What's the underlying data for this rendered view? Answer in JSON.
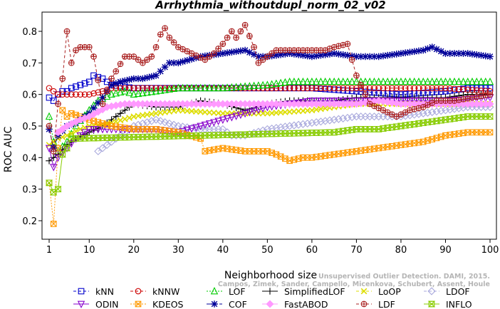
{
  "chart_data": {
    "type": "line",
    "title": "Arrhythmia_withoutdupl_norm_02_v02",
    "xlabel": "Neighborhood size",
    "ylabel": "ROC AUC",
    "xlim": [
      1,
      100
    ],
    "ylim": [
      0.15,
      0.85
    ],
    "xticks": [
      1,
      10,
      20,
      30,
      40,
      50,
      60,
      70,
      80,
      90,
      100
    ],
    "yticks": [
      0.2,
      0.3,
      0.4,
      0.5,
      0.6,
      0.7,
      0.8
    ],
    "grid": false,
    "legend_position": "bottom",
    "series": [
      {
        "name": "kNN",
        "color": "#0000cc",
        "marker": "square",
        "dash": "4,3",
        "points": [
          [
            1,
            0.59
          ],
          [
            2,
            0.58
          ],
          [
            3,
            0.6
          ],
          [
            4,
            0.61
          ],
          [
            5,
            0.61
          ],
          [
            6,
            0.62
          ],
          [
            8,
            0.63
          ],
          [
            10,
            0.64
          ],
          [
            11,
            0.66
          ],
          [
            13,
            0.65
          ],
          [
            15,
            0.63
          ],
          [
            20,
            0.62
          ],
          [
            30,
            0.62
          ],
          [
            40,
            0.62
          ],
          [
            50,
            0.62
          ],
          [
            60,
            0.62
          ],
          [
            70,
            0.61
          ],
          [
            80,
            0.6
          ],
          [
            90,
            0.61
          ],
          [
            95,
            0.62
          ],
          [
            100,
            0.62
          ]
        ]
      },
      {
        "name": "kNNW",
        "color": "#cc0000",
        "marker": "circle",
        "dash": "4,3",
        "points": [
          [
            1,
            0.62
          ],
          [
            2,
            0.61
          ],
          [
            3,
            0.6
          ],
          [
            5,
            0.6
          ],
          [
            7,
            0.6
          ],
          [
            10,
            0.6
          ],
          [
            13,
            0.61
          ],
          [
            15,
            0.62
          ],
          [
            20,
            0.62
          ],
          [
            30,
            0.62
          ],
          [
            40,
            0.62
          ],
          [
            50,
            0.62
          ],
          [
            60,
            0.62
          ],
          [
            70,
            0.62
          ],
          [
            80,
            0.62
          ],
          [
            90,
            0.62
          ],
          [
            100,
            0.61
          ]
        ]
      },
      {
        "name": "LOF",
        "color": "#00cc00",
        "marker": "triangle",
        "dash": "2,2",
        "points": [
          [
            1,
            0.53
          ],
          [
            2,
            0.45
          ],
          [
            3,
            0.42
          ],
          [
            5,
            0.45
          ],
          [
            7,
            0.5
          ],
          [
            10,
            0.55
          ],
          [
            12,
            0.58
          ],
          [
            15,
            0.6
          ],
          [
            18,
            0.61
          ],
          [
            20,
            0.6
          ],
          [
            25,
            0.61
          ],
          [
            30,
            0.62
          ],
          [
            40,
            0.62
          ],
          [
            50,
            0.63
          ],
          [
            55,
            0.64
          ],
          [
            60,
            0.64
          ],
          [
            70,
            0.64
          ],
          [
            80,
            0.64
          ],
          [
            90,
            0.64
          ],
          [
            100,
            0.64
          ]
        ]
      },
      {
        "name": "SimplifiedLOF",
        "color": "#000000",
        "marker": "plus",
        "dash": "",
        "points": [
          [
            1,
            0.39
          ],
          [
            2,
            0.4
          ],
          [
            3,
            0.41
          ],
          [
            5,
            0.44
          ],
          [
            7,
            0.46
          ],
          [
            10,
            0.48
          ],
          [
            13,
            0.5
          ],
          [
            15,
            0.52
          ],
          [
            18,
            0.55
          ],
          [
            20,
            0.57
          ],
          [
            25,
            0.56
          ],
          [
            30,
            0.56
          ],
          [
            35,
            0.58
          ],
          [
            40,
            0.57
          ],
          [
            45,
            0.55
          ],
          [
            50,
            0.57
          ],
          [
            55,
            0.58
          ],
          [
            60,
            0.58
          ],
          [
            65,
            0.58
          ],
          [
            70,
            0.59
          ],
          [
            75,
            0.59
          ],
          [
            80,
            0.59
          ],
          [
            85,
            0.59
          ],
          [
            90,
            0.59
          ],
          [
            95,
            0.6
          ],
          [
            100,
            0.6
          ]
        ]
      },
      {
        "name": "LoOP",
        "color": "#dddd00",
        "marker": "x",
        "dash": "4,3",
        "points": [
          [
            1,
            0.44
          ],
          [
            3,
            0.46
          ],
          [
            5,
            0.47
          ],
          [
            8,
            0.49
          ],
          [
            10,
            0.5
          ],
          [
            15,
            0.51
          ],
          [
            20,
            0.53
          ],
          [
            25,
            0.54
          ],
          [
            30,
            0.55
          ],
          [
            40,
            0.54
          ],
          [
            50,
            0.54
          ],
          [
            60,
            0.55
          ],
          [
            65,
            0.56
          ],
          [
            70,
            0.57
          ],
          [
            80,
            0.57
          ],
          [
            90,
            0.57
          ],
          [
            100,
            0.57
          ]
        ]
      },
      {
        "name": "LDOF",
        "color": "#aaaadd",
        "marker": "diamond",
        "dash": "4,3",
        "points": [
          [
            12,
            0.42
          ],
          [
            14,
            0.44
          ],
          [
            16,
            0.46
          ],
          [
            18,
            0.48
          ],
          [
            20,
            0.5
          ],
          [
            25,
            0.52
          ],
          [
            30,
            0.5
          ],
          [
            35,
            0.49
          ],
          [
            40,
            0.49
          ],
          [
            42,
            0.47
          ],
          [
            45,
            0.47
          ],
          [
            50,
            0.49
          ],
          [
            55,
            0.5
          ],
          [
            60,
            0.51
          ],
          [
            65,
            0.52
          ],
          [
            70,
            0.53
          ],
          [
            75,
            0.53
          ],
          [
            80,
            0.53
          ],
          [
            85,
            0.54
          ],
          [
            90,
            0.55
          ],
          [
            95,
            0.56
          ],
          [
            100,
            0.56
          ]
        ]
      },
      {
        "name": "ODIN",
        "color": "#8800cc",
        "marker": "triangle-down",
        "dash": "",
        "points": [
          [
            1,
            0.43
          ],
          [
            2,
            0.37
          ],
          [
            3,
            0.4
          ],
          [
            5,
            0.43
          ],
          [
            7,
            0.46
          ],
          [
            10,
            0.49
          ],
          [
            15,
            0.49
          ],
          [
            20,
            0.49
          ],
          [
            25,
            0.49
          ],
          [
            30,
            0.48
          ],
          [
            35,
            0.5
          ],
          [
            40,
            0.52
          ],
          [
            50,
            0.56
          ],
          [
            60,
            0.58
          ],
          [
            70,
            0.58
          ],
          [
            80,
            0.58
          ],
          [
            90,
            0.58
          ],
          [
            100,
            0.59
          ]
        ]
      },
      {
        "name": "KDEOS",
        "color": "#ff9900",
        "marker": "square-x",
        "dash": "2,2",
        "points": [
          [
            1,
            0.32
          ],
          [
            2,
            0.19
          ],
          [
            3,
            0.43
          ],
          [
            4,
            0.55
          ],
          [
            5,
            0.53
          ],
          [
            6,
            0.54
          ],
          [
            8,
            0.53
          ],
          [
            10,
            0.52
          ],
          [
            15,
            0.5
          ],
          [
            20,
            0.49
          ],
          [
            25,
            0.49
          ],
          [
            30,
            0.48
          ],
          [
            35,
            0.46
          ],
          [
            36,
            0.42
          ],
          [
            40,
            0.43
          ],
          [
            45,
            0.42
          ],
          [
            50,
            0.42
          ],
          [
            52,
            0.41
          ],
          [
            55,
            0.39
          ],
          [
            58,
            0.4
          ],
          [
            60,
            0.4
          ],
          [
            65,
            0.41
          ],
          [
            70,
            0.42
          ],
          [
            75,
            0.43
          ],
          [
            80,
            0.44
          ],
          [
            85,
            0.45
          ],
          [
            90,
            0.47
          ],
          [
            95,
            0.48
          ],
          [
            100,
            0.48
          ]
        ]
      },
      {
        "name": "COF",
        "color": "#000099",
        "marker": "star",
        "dash": "6,3",
        "points": [
          [
            1,
            0.49
          ],
          [
            2,
            0.43
          ],
          [
            3,
            0.47
          ],
          [
            5,
            0.5
          ],
          [
            7,
            0.51
          ],
          [
            10,
            0.54
          ],
          [
            13,
            0.59
          ],
          [
            15,
            0.63
          ],
          [
            17,
            0.64
          ],
          [
            20,
            0.65
          ],
          [
            22,
            0.65
          ],
          [
            25,
            0.66
          ],
          [
            28,
            0.7
          ],
          [
            30,
            0.7
          ],
          [
            35,
            0.72
          ],
          [
            40,
            0.73
          ],
          [
            45,
            0.74
          ],
          [
            48,
            0.72
          ],
          [
            50,
            0.72
          ],
          [
            55,
            0.73
          ],
          [
            60,
            0.72
          ],
          [
            65,
            0.73
          ],
          [
            70,
            0.72
          ],
          [
            75,
            0.72
          ],
          [
            80,
            0.73
          ],
          [
            85,
            0.74
          ],
          [
            87,
            0.75
          ],
          [
            90,
            0.73
          ],
          [
            95,
            0.73
          ],
          [
            100,
            0.72
          ]
        ]
      },
      {
        "name": "FastABOD",
        "color": "#ff99ff",
        "marker": "diamond-filled",
        "dash": "",
        "points": [
          [
            3,
            0.48
          ],
          [
            5,
            0.5
          ],
          [
            8,
            0.52
          ],
          [
            10,
            0.53
          ],
          [
            14,
            0.56
          ],
          [
            18,
            0.57
          ],
          [
            20,
            0.57
          ],
          [
            25,
            0.57
          ],
          [
            30,
            0.57
          ],
          [
            40,
            0.57
          ],
          [
            50,
            0.57
          ],
          [
            60,
            0.57
          ],
          [
            70,
            0.57
          ],
          [
            75,
            0.58
          ],
          [
            80,
            0.57
          ],
          [
            90,
            0.57
          ],
          [
            100,
            0.57
          ]
        ]
      },
      {
        "name": "LDF",
        "color": "#aa2222",
        "marker": "circle-plus",
        "dash": "4,3",
        "points": [
          [
            1,
            0.5
          ],
          [
            2,
            0.42
          ],
          [
            3,
            0.57
          ],
          [
            4,
            0.65
          ],
          [
            5,
            0.8
          ],
          [
            6,
            0.7
          ],
          [
            7,
            0.74
          ],
          [
            8,
            0.75
          ],
          [
            9,
            0.75
          ],
          [
            10,
            0.75
          ],
          [
            11,
            0.72
          ],
          [
            13,
            0.57
          ],
          [
            15,
            0.65
          ],
          [
            18,
            0.72
          ],
          [
            20,
            0.72
          ],
          [
            22,
            0.7
          ],
          [
            24,
            0.72
          ],
          [
            25,
            0.75
          ],
          [
            26,
            0.79
          ],
          [
            27,
            0.81
          ],
          [
            28,
            0.78
          ],
          [
            30,
            0.75
          ],
          [
            33,
            0.73
          ],
          [
            36,
            0.71
          ],
          [
            38,
            0.73
          ],
          [
            40,
            0.76
          ],
          [
            42,
            0.8
          ],
          [
            43,
            0.78
          ],
          [
            45,
            0.82
          ],
          [
            47,
            0.75
          ],
          [
            48,
            0.7
          ],
          [
            50,
            0.72
          ],
          [
            52,
            0.74
          ],
          [
            55,
            0.74
          ],
          [
            60,
            0.74
          ],
          [
            63,
            0.74
          ],
          [
            65,
            0.75
          ],
          [
            68,
            0.76
          ],
          [
            70,
            0.66
          ],
          [
            73,
            0.57
          ],
          [
            76,
            0.55
          ],
          [
            79,
            0.53
          ],
          [
            82,
            0.55
          ],
          [
            85,
            0.56
          ],
          [
            88,
            0.58
          ],
          [
            92,
            0.58
          ],
          [
            96,
            0.59
          ],
          [
            100,
            0.6
          ]
        ]
      },
      {
        "name": "INFLO",
        "color": "#88cc00",
        "marker": "hourglass",
        "dash": "",
        "points": [
          [
            1,
            0.32
          ],
          [
            2,
            0.29
          ],
          [
            3,
            0.3
          ],
          [
            4,
            0.41
          ],
          [
            5,
            0.43
          ],
          [
            6,
            0.46
          ],
          [
            65,
            0.48
          ],
          [
            70,
            0.49
          ],
          [
            75,
            0.49
          ],
          [
            80,
            0.5
          ],
          [
            85,
            0.51
          ],
          [
            90,
            0.52
          ],
          [
            95,
            0.53
          ],
          [
            100,
            0.53
          ]
        ]
      }
    ]
  },
  "watermark": {
    "line1": "Unsupervised Outlier Detection. DAMI, 2015.",
    "line2": "Campos, Zimek, Sander, Campello, Micenkova, Schubert, Assent, Houle"
  }
}
